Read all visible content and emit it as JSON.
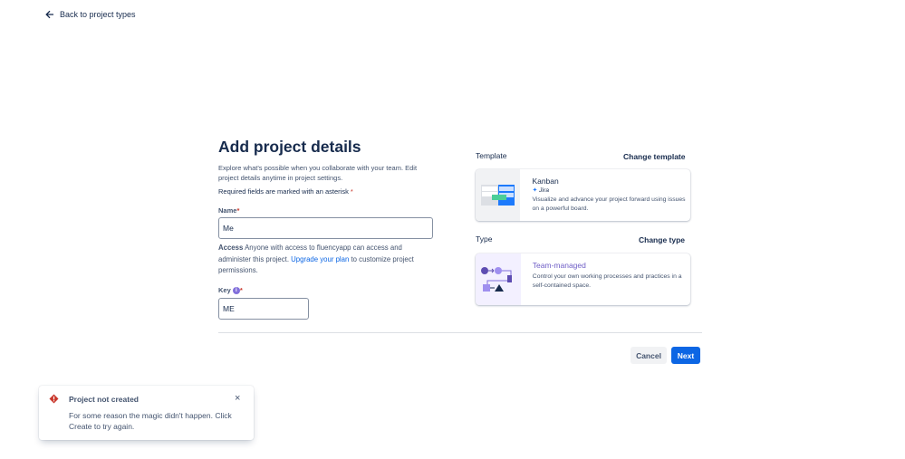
{
  "nav": {
    "back_label": "Back to project types",
    "back_icon": "arrow-left-icon"
  },
  "form": {
    "title": "Add project details",
    "description": "Explore what's possible when you collaborate with your team. Edit project details anytime in project settings.",
    "required_note": "Required fields are marked with an asterisk",
    "asterisk": "*",
    "name_label": "Name",
    "name_value": "Me",
    "access_label": "Access",
    "access_text_1": "Anyone with access to fluencyapp can access and administer this project.",
    "access_link": "Upgrade your plan",
    "access_text_2": "to customize project permissions.",
    "key_label": "Key",
    "key_info_icon": "info-icon",
    "key_value": "ME"
  },
  "template": {
    "section_label": "Template",
    "change_label": "Change template",
    "name": "Kanban",
    "product": "Jira",
    "description": "Visualize and advance your project forward using issues on a powerful board."
  },
  "type": {
    "section_label": "Type",
    "change_label": "Change type",
    "name": "Team-managed",
    "description": "Control your own working processes and practices in a self-contained space."
  },
  "actions": {
    "cancel": "Cancel",
    "next": "Next"
  },
  "toast": {
    "title": "Project not created",
    "message": "For some reason the magic didn't happen. Click Create to try again.",
    "icon": "error-icon",
    "close_icon": "close-icon"
  },
  "colors": {
    "primary": "#0c66e4",
    "error": "#c9372c",
    "purple": "#6e5dc6"
  }
}
